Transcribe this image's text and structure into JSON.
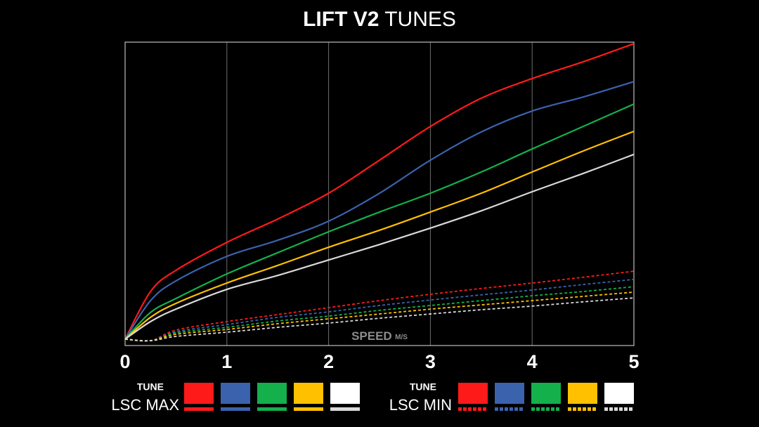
{
  "chart_data": {
    "type": "line",
    "title": {
      "bold": "LIFT V2",
      "normal": "TUNES"
    },
    "x_label": {
      "text": "SPEED",
      "unit": "M/S"
    },
    "x": [
      0,
      0.25,
      0.5,
      1,
      1.5,
      2,
      2.5,
      3,
      3.5,
      4,
      4.5,
      5
    ],
    "xlim": [
      0,
      5
    ],
    "xticks": [
      0,
      1,
      2,
      3,
      4,
      5
    ],
    "ylim": [
      0,
      100
    ],
    "grid": true,
    "legend": [
      {
        "heading": "TUNE",
        "label": "LSC MAX",
        "dashed": false
      },
      {
        "heading": "TUNE",
        "label": "LSC MIN",
        "dashed": true
      }
    ],
    "series": [
      {
        "color": "#ff1a1a",
        "group": 0,
        "values": [
          2.1,
          17.8,
          24.8,
          34.0,
          41.7,
          50.2,
          61.1,
          72.2,
          81.5,
          88.0,
          93.5,
          99.5
        ]
      },
      {
        "color": "#3b62ad",
        "group": 0,
        "values": [
          2.1,
          14.8,
          21.3,
          29.4,
          34.7,
          41.0,
          50.2,
          61.1,
          70.4,
          77.3,
          81.9,
          87.0
        ]
      },
      {
        "color": "#13b04c",
        "group": 0,
        "values": [
          2.1,
          10.9,
          15.5,
          23.6,
          30.6,
          37.5,
          44.0,
          50.2,
          57.2,
          64.8,
          72.2,
          79.6
        ]
      },
      {
        "color": "#ffc000",
        "group": 0,
        "values": [
          2.1,
          9.3,
          13.9,
          20.6,
          26.4,
          32.4,
          38.0,
          44.0,
          50.2,
          57.2,
          64.1,
          70.6
        ]
      },
      {
        "color": "#d9d9d9",
        "group": 0,
        "values": [
          2.1,
          7.9,
          12.0,
          18.5,
          23.1,
          28.2,
          33.3,
          38.7,
          44.4,
          50.7,
          56.7,
          63.0
        ]
      },
      {
        "color": "#ff1a1a",
        "group": 1,
        "values": [
          2.1,
          1.6,
          5.1,
          7.9,
          10.2,
          12.5,
          14.8,
          16.9,
          18.8,
          20.6,
          22.5,
          24.5
        ]
      },
      {
        "color": "#3b62ad",
        "group": 1,
        "values": [
          2.1,
          1.6,
          4.6,
          6.9,
          9.3,
          11.1,
          13.2,
          15.0,
          16.7,
          18.3,
          20.1,
          21.8
        ]
      },
      {
        "color": "#13b04c",
        "group": 1,
        "values": [
          2.1,
          1.6,
          4.2,
          6.0,
          8.1,
          9.7,
          11.6,
          13.2,
          14.8,
          16.4,
          17.8,
          19.4
        ]
      },
      {
        "color": "#ffc000",
        "group": 1,
        "values": [
          2.1,
          1.6,
          3.7,
          5.3,
          7.2,
          8.8,
          10.4,
          12.0,
          13.4,
          14.8,
          16.2,
          17.6
        ]
      },
      {
        "color": "#d9d9d9",
        "group": 1,
        "values": [
          2.1,
          1.6,
          3.0,
          4.4,
          6.0,
          7.4,
          9.0,
          10.4,
          11.8,
          13.0,
          14.4,
          15.7
        ]
      }
    ]
  }
}
